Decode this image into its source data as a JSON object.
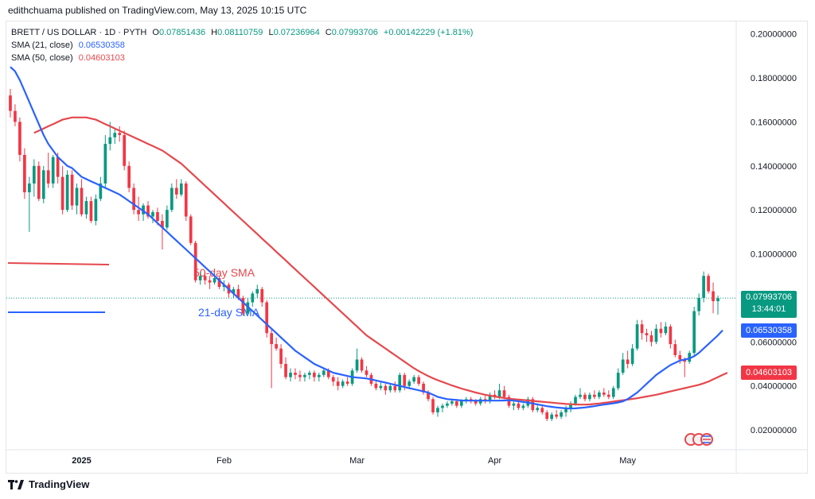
{
  "byline": "edithchuama published on TradingView.com, May 13, 2025 10:15 UTC",
  "legend": {
    "symbol": "BRETT / US DOLLAR · 1D · PYTH",
    "ohlc": [
      {
        "k": "O",
        "v": "0.07851436"
      },
      {
        "k": "H",
        "v": "0.08110759"
      },
      {
        "k": "L",
        "v": "0.07236964"
      },
      {
        "k": "C",
        "v": "0.07993706"
      }
    ],
    "change": "+0.00142229 (+1.81%)",
    "sma21_label": "SMA (21, close)",
    "sma21_value": "0.06530358",
    "sma50_label": "SMA (50, close)",
    "sma50_value": "0.04603103"
  },
  "last_price": "0.07993706",
  "countdown": "13:44:01",
  "colors": {
    "up": "#089981",
    "down": "#f23645",
    "sma21": "#2962ff",
    "sma50": "#e5484d"
  },
  "footer": {
    "brand": "TradingView",
    "logo_icon": "tradingview-logo-icon"
  },
  "chart_data": {
    "type": "candlestick",
    "ylim": [
      0.011,
      0.206
    ],
    "y_ticks": [
      "0.02000000",
      "0.04000000",
      "0.06000000",
      "0.08000000",
      "0.10000000",
      "0.12000000",
      "0.14000000",
      "0.16000000",
      "0.18000000",
      "0.20000000"
    ],
    "x_ticks": [
      "2025",
      "Feb",
      "Mar",
      "Apr",
      "May"
    ],
    "annotations": [
      "50-day SMA",
      "21-day SMA"
    ],
    "candles": [
      [
        0.172,
        0.175,
        0.162,
        0.165
      ],
      [
        0.165,
        0.168,
        0.158,
        0.16
      ],
      [
        0.16,
        0.162,
        0.142,
        0.145
      ],
      [
        0.145,
        0.148,
        0.125,
        0.128
      ],
      [
        0.128,
        0.135,
        0.11,
        0.132
      ],
      [
        0.132,
        0.143,
        0.126,
        0.14
      ],
      [
        0.14,
        0.142,
        0.124,
        0.125
      ],
      [
        0.125,
        0.14,
        0.123,
        0.138
      ],
      [
        0.138,
        0.146,
        0.13,
        0.132
      ],
      [
        0.132,
        0.145,
        0.13,
        0.144
      ],
      [
        0.144,
        0.146,
        0.132,
        0.135
      ],
      [
        0.135,
        0.14,
        0.118,
        0.12
      ],
      [
        0.12,
        0.138,
        0.119,
        0.136
      ],
      [
        0.136,
        0.138,
        0.12,
        0.122
      ],
      [
        0.122,
        0.132,
        0.118,
        0.13
      ],
      [
        0.13,
        0.134,
        0.117,
        0.118
      ],
      [
        0.118,
        0.126,
        0.116,
        0.124
      ],
      [
        0.124,
        0.126,
        0.114,
        0.115
      ],
      [
        0.115,
        0.127,
        0.113,
        0.125
      ],
      [
        0.125,
        0.135,
        0.124,
        0.132
      ],
      [
        0.132,
        0.154,
        0.13,
        0.15
      ],
      [
        0.15,
        0.16,
        0.147,
        0.153
      ],
      [
        0.153,
        0.157,
        0.15,
        0.155
      ],
      [
        0.155,
        0.158,
        0.151,
        0.154
      ],
      [
        0.154,
        0.156,
        0.138,
        0.14
      ],
      [
        0.14,
        0.142,
        0.128,
        0.13
      ],
      [
        0.13,
        0.132,
        0.118,
        0.12
      ],
      [
        0.12,
        0.126,
        0.115,
        0.118
      ],
      [
        0.118,
        0.123,
        0.115,
        0.122
      ],
      [
        0.122,
        0.124,
        0.116,
        0.117
      ],
      [
        0.117,
        0.12,
        0.114,
        0.119
      ],
      [
        0.119,
        0.121,
        0.113,
        0.115
      ],
      [
        0.115,
        0.118,
        0.102,
        0.112
      ],
      [
        0.112,
        0.122,
        0.111,
        0.12
      ],
      [
        0.12,
        0.132,
        0.119,
        0.13
      ],
      [
        0.13,
        0.134,
        0.125,
        0.127
      ],
      [
        0.127,
        0.134,
        0.126,
        0.132
      ],
      [
        0.132,
        0.133,
        0.115,
        0.117
      ],
      [
        0.117,
        0.118,
        0.104,
        0.105
      ],
      [
        0.105,
        0.106,
        0.087,
        0.088
      ],
      [
        0.088,
        0.092,
        0.086,
        0.09
      ],
      [
        0.09,
        0.092,
        0.086,
        0.088
      ],
      [
        0.088,
        0.09,
        0.084,
        0.087
      ],
      [
        0.087,
        0.091,
        0.086,
        0.089
      ],
      [
        0.089,
        0.09,
        0.084,
        0.085
      ],
      [
        0.085,
        0.088,
        0.083,
        0.086
      ],
      [
        0.086,
        0.087,
        0.08,
        0.082
      ],
      [
        0.082,
        0.085,
        0.08,
        0.084
      ],
      [
        0.084,
        0.086,
        0.079,
        0.08
      ],
      [
        0.08,
        0.081,
        0.072,
        0.073
      ],
      [
        0.073,
        0.08,
        0.072,
        0.078
      ],
      [
        0.078,
        0.083,
        0.076,
        0.082
      ],
      [
        0.082,
        0.086,
        0.08,
        0.084
      ],
      [
        0.084,
        0.085,
        0.076,
        0.078
      ],
      [
        0.078,
        0.079,
        0.062,
        0.064
      ],
      [
        0.064,
        0.066,
        0.039,
        0.059
      ],
      [
        0.059,
        0.062,
        0.056,
        0.057
      ],
      [
        0.057,
        0.059,
        0.048,
        0.05
      ],
      [
        0.05,
        0.053,
        0.043,
        0.044
      ],
      [
        0.044,
        0.048,
        0.042,
        0.046
      ],
      [
        0.046,
        0.048,
        0.043,
        0.045
      ],
      [
        0.045,
        0.047,
        0.042,
        0.044
      ],
      [
        0.044,
        0.046,
        0.042,
        0.045
      ],
      [
        0.045,
        0.047,
        0.043,
        0.046
      ],
      [
        0.046,
        0.047,
        0.042,
        0.044
      ],
      [
        0.044,
        0.046,
        0.042,
        0.045
      ],
      [
        0.045,
        0.048,
        0.044,
        0.047
      ],
      [
        0.047,
        0.048,
        0.043,
        0.044
      ],
      [
        0.044,
        0.045,
        0.04,
        0.042
      ],
      [
        0.042,
        0.044,
        0.038,
        0.04
      ],
      [
        0.04,
        0.043,
        0.039,
        0.042
      ],
      [
        0.042,
        0.044,
        0.04,
        0.041
      ],
      [
        0.041,
        0.048,
        0.04,
        0.047
      ],
      [
        0.047,
        0.057,
        0.046,
        0.052
      ],
      [
        0.052,
        0.053,
        0.046,
        0.047
      ],
      [
        0.047,
        0.049,
        0.044,
        0.045
      ],
      [
        0.045,
        0.046,
        0.04,
        0.041
      ],
      [
        0.041,
        0.042,
        0.038,
        0.039
      ],
      [
        0.039,
        0.042,
        0.038,
        0.04
      ],
      [
        0.04,
        0.041,
        0.036,
        0.038
      ],
      [
        0.038,
        0.041,
        0.037,
        0.04
      ],
      [
        0.04,
        0.042,
        0.037,
        0.038
      ],
      [
        0.038,
        0.046,
        0.037,
        0.045
      ],
      [
        0.045,
        0.046,
        0.038,
        0.04
      ],
      [
        0.04,
        0.043,
        0.039,
        0.042
      ],
      [
        0.042,
        0.045,
        0.041,
        0.044
      ],
      [
        0.044,
        0.045,
        0.04,
        0.041
      ],
      [
        0.041,
        0.042,
        0.036,
        0.037
      ],
      [
        0.037,
        0.038,
        0.033,
        0.034
      ],
      [
        0.034,
        0.035,
        0.027,
        0.028
      ],
      [
        0.028,
        0.031,
        0.026,
        0.03
      ],
      [
        0.03,
        0.032,
        0.028,
        0.031
      ],
      [
        0.031,
        0.033,
        0.03,
        0.032
      ],
      [
        0.032,
        0.034,
        0.031,
        0.033
      ],
      [
        0.033,
        0.034,
        0.03,
        0.031
      ],
      [
        0.031,
        0.034,
        0.03,
        0.033
      ],
      [
        0.033,
        0.035,
        0.032,
        0.034
      ],
      [
        0.034,
        0.035,
        0.032,
        0.033
      ],
      [
        0.033,
        0.034,
        0.031,
        0.032
      ],
      [
        0.032,
        0.035,
        0.031,
        0.034
      ],
      [
        0.034,
        0.036,
        0.032,
        0.033
      ],
      [
        0.033,
        0.037,
        0.032,
        0.036
      ],
      [
        0.036,
        0.038,
        0.034,
        0.035
      ],
      [
        0.035,
        0.041,
        0.034,
        0.038
      ],
      [
        0.038,
        0.04,
        0.034,
        0.035
      ],
      [
        0.035,
        0.036,
        0.03,
        0.031
      ],
      [
        0.031,
        0.033,
        0.029,
        0.032
      ],
      [
        0.032,
        0.033,
        0.029,
        0.03
      ],
      [
        0.03,
        0.032,
        0.029,
        0.031
      ],
      [
        0.031,
        0.035,
        0.03,
        0.034
      ],
      [
        0.034,
        0.035,
        0.028,
        0.029
      ],
      [
        0.029,
        0.031,
        0.028,
        0.03
      ],
      [
        0.03,
        0.031,
        0.027,
        0.028
      ],
      [
        0.028,
        0.029,
        0.024,
        0.025
      ],
      [
        0.025,
        0.028,
        0.024,
        0.027
      ],
      [
        0.027,
        0.029,
        0.025,
        0.026
      ],
      [
        0.026,
        0.029,
        0.025,
        0.028
      ],
      [
        0.028,
        0.031,
        0.026,
        0.03
      ],
      [
        0.03,
        0.033,
        0.028,
        0.032
      ],
      [
        0.032,
        0.036,
        0.031,
        0.035
      ],
      [
        0.035,
        0.039,
        0.034,
        0.036
      ],
      [
        0.036,
        0.037,
        0.033,
        0.034
      ],
      [
        0.034,
        0.037,
        0.033,
        0.036
      ],
      [
        0.036,
        0.038,
        0.034,
        0.035
      ],
      [
        0.035,
        0.038,
        0.034,
        0.037
      ],
      [
        0.037,
        0.039,
        0.035,
        0.036
      ],
      [
        0.036,
        0.038,
        0.034,
        0.035
      ],
      [
        0.035,
        0.04,
        0.034,
        0.039
      ],
      [
        0.039,
        0.048,
        0.038,
        0.046
      ],
      [
        0.046,
        0.055,
        0.045,
        0.052
      ],
      [
        0.052,
        0.056,
        0.048,
        0.05
      ],
      [
        0.05,
        0.059,
        0.049,
        0.057
      ],
      [
        0.057,
        0.07,
        0.056,
        0.068
      ],
      [
        0.068,
        0.07,
        0.061,
        0.064
      ],
      [
        0.064,
        0.066,
        0.06,
        0.063
      ],
      [
        0.063,
        0.065,
        0.058,
        0.06
      ],
      [
        0.06,
        0.068,
        0.059,
        0.066
      ],
      [
        0.066,
        0.069,
        0.062,
        0.064
      ],
      [
        0.064,
        0.069,
        0.063,
        0.067
      ],
      [
        0.067,
        0.068,
        0.057,
        0.059
      ],
      [
        0.059,
        0.061,
        0.053,
        0.054
      ],
      [
        0.054,
        0.056,
        0.05,
        0.052
      ],
      [
        0.052,
        0.053,
        0.044,
        0.051
      ],
      [
        0.051,
        0.056,
        0.05,
        0.055
      ],
      [
        0.055,
        0.076,
        0.054,
        0.074
      ],
      [
        0.074,
        0.082,
        0.072,
        0.08
      ],
      [
        0.08,
        0.092,
        0.078,
        0.09
      ],
      [
        0.09,
        0.091,
        0.082,
        0.083
      ],
      [
        0.083,
        0.087,
        0.073,
        0.0785
      ],
      [
        0.0785,
        0.0811,
        0.0724,
        0.0799
      ]
    ],
    "sma21": [
      0.185,
      0.183,
      0.179,
      0.174,
      0.169,
      0.164,
      0.159,
      0.154,
      0.15,
      0.147,
      0.144,
      0.142,
      0.14,
      0.139,
      0.137,
      0.135,
      0.134,
      0.133,
      0.132,
      0.131,
      0.13,
      0.129,
      0.128,
      0.127,
      0.1255,
      0.124,
      0.1225,
      0.121,
      0.1195,
      0.118,
      0.116,
      0.114,
      0.112,
      0.11,
      0.108,
      0.106,
      0.104,
      0.102,
      0.1,
      0.098,
      0.096,
      0.094,
      0.092,
      0.09,
      0.088,
      0.086,
      0.084,
      0.082,
      0.08,
      0.078,
      0.076,
      0.074,
      0.072,
      0.07,
      0.068,
      0.066,
      0.064,
      0.062,
      0.06,
      0.058,
      0.056,
      0.0545,
      0.053,
      0.0515,
      0.05,
      0.049,
      0.048,
      0.047,
      0.046,
      0.0455,
      0.045,
      0.0445,
      0.044,
      0.0438,
      0.0436,
      0.0434,
      0.043,
      0.0425,
      0.042,
      0.0415,
      0.041,
      0.0405,
      0.04,
      0.0395,
      0.039,
      0.0385,
      0.038,
      0.0375,
      0.037,
      0.036,
      0.035,
      0.0345,
      0.034,
      0.0338,
      0.0336,
      0.0334,
      0.0333,
      0.0333,
      0.0333,
      0.0333,
      0.0333,
      0.0333,
      0.0333,
      0.0333,
      0.0334,
      0.0335,
      0.0333,
      0.033,
      0.0327,
      0.0324,
      0.032,
      0.0316,
      0.0312,
      0.0308,
      0.0305,
      0.0302,
      0.03,
      0.0298,
      0.0297,
      0.0298,
      0.03,
      0.0302,
      0.0305,
      0.0308,
      0.0312,
      0.0315,
      0.0318,
      0.0321,
      0.0325,
      0.033,
      0.034,
      0.0355,
      0.037,
      0.039,
      0.041,
      0.043,
      0.045,
      0.0465,
      0.048,
      0.0495,
      0.0505,
      0.0515,
      0.052,
      0.0525,
      0.0535,
      0.055,
      0.057,
      0.059,
      0.061,
      0.063,
      0.0653
    ],
    "sma50": [
      null,
      null,
      null,
      null,
      null,
      0.155,
      0.156,
      0.157,
      0.158,
      0.159,
      0.16,
      0.161,
      0.1615,
      0.162,
      0.162,
      0.162,
      0.162,
      0.1615,
      0.161,
      0.16,
      0.159,
      0.158,
      0.157,
      0.156,
      0.155,
      0.154,
      0.153,
      0.152,
      0.151,
      0.15,
      0.149,
      0.148,
      0.147,
      0.1455,
      0.144,
      0.1425,
      0.141,
      0.139,
      0.137,
      0.135,
      0.133,
      0.131,
      0.129,
      0.127,
      0.125,
      0.123,
      0.121,
      0.119,
      0.117,
      0.115,
      0.113,
      0.111,
      0.109,
      0.107,
      0.105,
      0.103,
      0.101,
      0.099,
      0.097,
      0.095,
      0.093,
      0.091,
      0.089,
      0.087,
      0.085,
      0.083,
      0.081,
      0.079,
      0.077,
      0.075,
      0.073,
      0.071,
      0.069,
      0.067,
      0.065,
      0.063,
      0.0615,
      0.06,
      0.0585,
      0.057,
      0.0555,
      0.054,
      0.0525,
      0.051,
      0.0495,
      0.048,
      0.0468,
      0.0456,
      0.0445,
      0.0435,
      0.0426,
      0.0418,
      0.041,
      0.0402,
      0.0395,
      0.0388,
      0.0382,
      0.0376,
      0.037,
      0.0365,
      0.036,
      0.0356,
      0.0352,
      0.0348,
      0.0345,
      0.0342,
      0.034,
      0.0338,
      0.0336,
      0.0334,
      0.0332,
      0.033,
      0.0328,
      0.0326,
      0.0324,
      0.0322,
      0.032,
      0.0318,
      0.0317,
      0.0316,
      0.0315,
      0.0315,
      0.0316,
      0.0318,
      0.032,
      0.0323,
      0.0326,
      0.0329,
      0.0332,
      0.0335,
      0.0338,
      0.0341,
      0.0344,
      0.0348,
      0.0352,
      0.0356,
      0.036,
      0.0365,
      0.037,
      0.0375,
      0.038,
      0.0385,
      0.039,
      0.0395,
      0.04,
      0.0405,
      0.0412,
      0.042,
      0.043,
      0.044,
      0.045,
      0.046
    ]
  }
}
